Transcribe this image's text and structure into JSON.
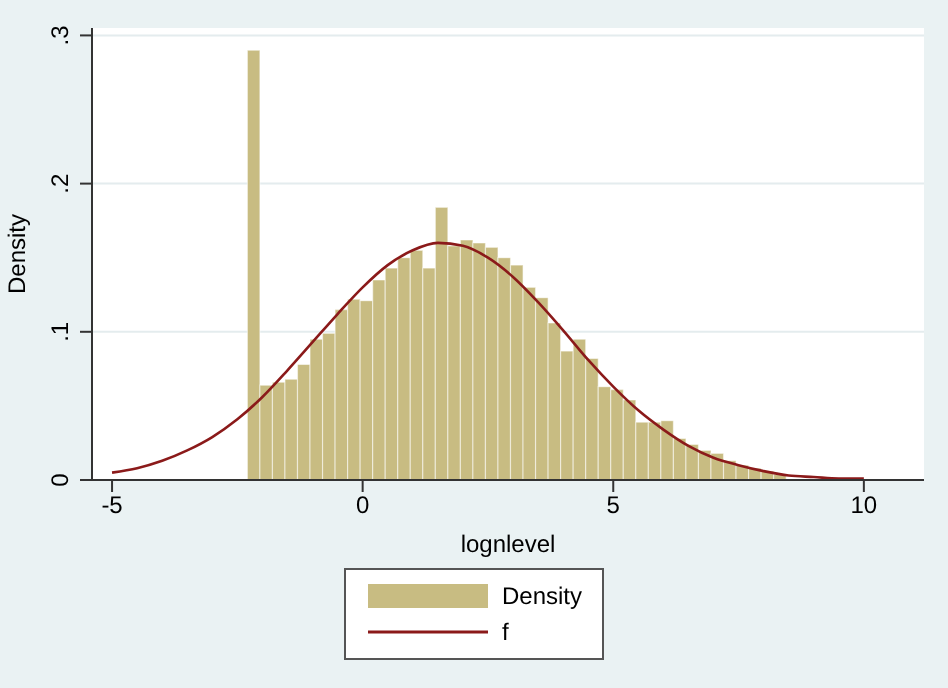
{
  "chart_data": {
    "type": "histogram",
    "xlabel": "lognlevel",
    "ylabel": "Density",
    "bins": [
      -2.3,
      -2.05,
      -1.8,
      -1.55,
      -1.3,
      -1.05,
      -0.8,
      -0.55,
      -0.3,
      -0.05,
      0.2,
      0.45,
      0.7,
      0.95,
      1.2,
      1.45,
      1.7,
      1.95,
      2.2,
      2.45,
      2.7,
      2.95,
      3.2,
      3.45,
      3.7,
      3.95,
      4.2,
      4.45,
      4.7,
      4.95,
      5.2,
      5.45,
      5.7,
      5.95,
      6.2,
      6.45,
      6.7,
      6.95,
      7.2,
      7.45,
      7.7,
      7.95,
      8.2,
      8.45
    ],
    "series": [
      {
        "name": "Density",
        "color": "#c8bc82",
        "values": [
          0.29,
          0.064,
          0.066,
          0.068,
          0.078,
          0.095,
          0.099,
          0.115,
          0.122,
          0.121,
          0.135,
          0.143,
          0.15,
          0.155,
          0.143,
          0.184,
          0.158,
          0.162,
          0.16,
          0.157,
          0.15,
          0.145,
          0.13,
          0.123,
          0.106,
          0.087,
          0.095,
          0.082,
          0.063,
          0.061,
          0.054,
          0.039,
          0.039,
          0.04,
          0.028,
          0.024,
          0.02,
          0.018,
          0.013,
          0.01,
          0.008,
          0.006,
          0.004
        ]
      },
      {
        "name": "f",
        "type": "line",
        "color": "#8b1a1a",
        "x": [
          -5,
          -4.5,
          -4,
          -3.5,
          -3,
          -2.5,
          -2,
          -1.5,
          -1,
          -0.5,
          0,
          0.5,
          1,
          1.5,
          2,
          2.5,
          3,
          3.5,
          4,
          4.5,
          5,
          5.5,
          6,
          6.5,
          7,
          7.5,
          8,
          8.5,
          9,
          9.5,
          10
        ],
        "values": [
          0.005,
          0.008,
          0.013,
          0.02,
          0.029,
          0.041,
          0.056,
          0.074,
          0.093,
          0.112,
          0.13,
          0.145,
          0.155,
          0.16,
          0.158,
          0.15,
          0.137,
          0.12,
          0.101,
          0.081,
          0.063,
          0.047,
          0.034,
          0.023,
          0.015,
          0.01,
          0.006,
          0.003,
          0.002,
          0.001,
          0.001
        ]
      }
    ],
    "xlim": [
      -5.4,
      11.2
    ],
    "xticks": [
      -5,
      0,
      5,
      10
    ],
    "ylim": [
      0,
      0.305
    ],
    "yticks": [
      0,
      {
        "value": 0.1,
        "label": ".1"
      },
      {
        "value": 0.2,
        "label": ".2"
      },
      {
        "value": 0.3,
        "label": ".3"
      }
    ],
    "grid": "y",
    "legend": "bottom"
  }
}
